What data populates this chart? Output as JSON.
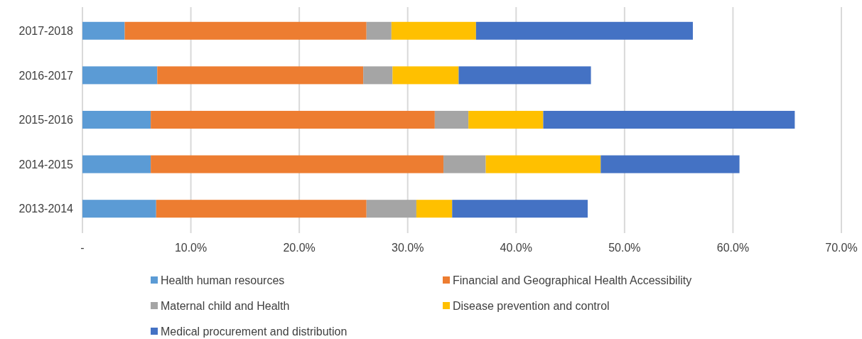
{
  "chart_data": {
    "type": "bar",
    "orientation": "horizontal",
    "stacked": true,
    "categories": [
      "2017-2018",
      "2016-2017",
      "2015-2016",
      "2014-2015",
      "2013-2014"
    ],
    "series": [
      {
        "name": "Health human resources",
        "color": "#5b9bd5",
        "values": [
          3.9,
          6.9,
          6.3,
          6.3,
          6.8
        ]
      },
      {
        "name": "Financial and Geographical Health Accessibility",
        "color": "#ed7d31",
        "values": [
          22.3,
          19.0,
          26.2,
          27.0,
          19.4
        ]
      },
      {
        "name": "Maternal child and Health",
        "color": "#a5a5a5",
        "values": [
          2.3,
          2.7,
          3.1,
          3.9,
          4.6
        ]
      },
      {
        "name": "Disease prevention and control",
        "color": "#ffc000",
        "values": [
          7.8,
          6.1,
          6.9,
          10.6,
          3.3
        ]
      },
      {
        "name": "Medical procurement and distribution",
        "color": "#4472c4",
        "values": [
          20.0,
          12.2,
          23.2,
          12.8,
          12.5
        ]
      }
    ],
    "xlim": [
      0,
      70
    ],
    "xticks": [
      {
        "value": 0,
        "label": "-"
      },
      {
        "value": 10,
        "label": "10.0%"
      },
      {
        "value": 20,
        "label": "20.0%"
      },
      {
        "value": 30,
        "label": "30.0%"
      },
      {
        "value": 40,
        "label": "40.0%"
      },
      {
        "value": 50,
        "label": "50.0%"
      },
      {
        "value": 60,
        "label": "60.0%"
      },
      {
        "value": 70,
        "label": "70.0%"
      }
    ],
    "grid": "x",
    "legend": "bottom"
  }
}
